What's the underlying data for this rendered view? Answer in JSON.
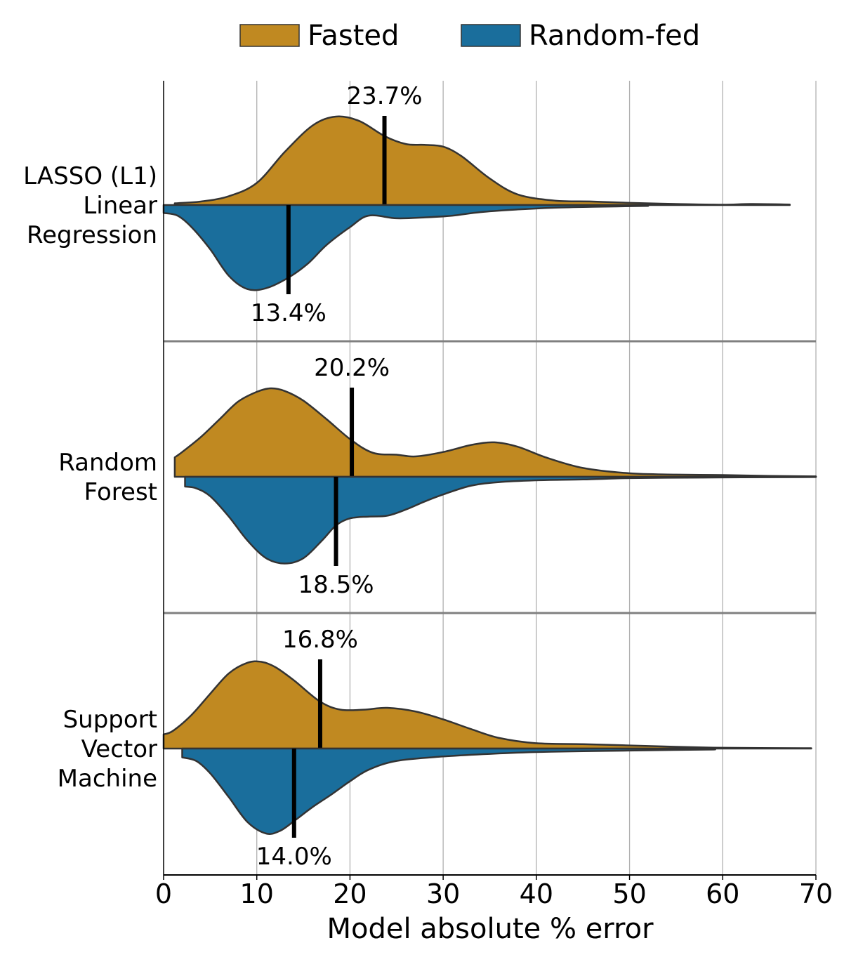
{
  "chart_data": {
    "type": "violin",
    "orientation": "horizontal",
    "split": true,
    "xlabel": "Model absolute % error",
    "xlim": [
      0,
      70
    ],
    "xticks": [
      0,
      10,
      20,
      30,
      40,
      50,
      60,
      70
    ],
    "grid": "vertical",
    "legend": {
      "position": "top-center",
      "items": [
        {
          "label": "Fasted",
          "color": "#c08921"
        },
        {
          "label": "Random-fed",
          "color": "#1a6e9c"
        }
      ]
    },
    "categories": [
      {
        "label_lines": [
          "LASSO (L1)",
          "Linear",
          "Regression"
        ],
        "fasted": {
          "median": 23.7,
          "median_label": "23.7%",
          "range": [
            1.2,
            67.2
          ],
          "density": [
            [
              1.2,
              0.02
            ],
            [
              4,
              0.04
            ],
            [
              7,
              0.1
            ],
            [
              10,
              0.25
            ],
            [
              13,
              0.6
            ],
            [
              16,
              0.9
            ],
            [
              18.5,
              1.0
            ],
            [
              21,
              0.95
            ],
            [
              23.7,
              0.78
            ],
            [
              26,
              0.69
            ],
            [
              28,
              0.68
            ],
            [
              30,
              0.66
            ],
            [
              32,
              0.55
            ],
            [
              35,
              0.3
            ],
            [
              38,
              0.12
            ],
            [
              42,
              0.05
            ],
            [
              46,
              0.04
            ],
            [
              50,
              0.025
            ],
            [
              55,
              0.012
            ],
            [
              60,
              0.004
            ],
            [
              63,
              0.012
            ],
            [
              67.2,
              0.006
            ]
          ]
        },
        "random_fed": {
          "median": 13.4,
          "median_label": "13.4%",
          "range": [
            0,
            52
          ],
          "density": [
            [
              0,
              0.09
            ],
            [
              1.5,
              0.12
            ],
            [
              3,
              0.25
            ],
            [
              5,
              0.5
            ],
            [
              7,
              0.8
            ],
            [
              9,
              0.95
            ],
            [
              11,
              0.94
            ],
            [
              13.4,
              0.82
            ],
            [
              15.5,
              0.66
            ],
            [
              17.5,
              0.45
            ],
            [
              20,
              0.25
            ],
            [
              22,
              0.12
            ],
            [
              25,
              0.15
            ],
            [
              28,
              0.14
            ],
            [
              31,
              0.12
            ],
            [
              34,
              0.08
            ],
            [
              38,
              0.05
            ],
            [
              42,
              0.03
            ],
            [
              46,
              0.02
            ],
            [
              52,
              0.01
            ]
          ]
        }
      },
      {
        "label_lines": [
          "Random",
          "Forest"
        ],
        "fasted": {
          "median": 20.2,
          "median_label": "20.2%",
          "range": [
            1.2,
            70
          ],
          "density": [
            [
              1.2,
              0.22
            ],
            [
              2,
              0.28
            ],
            [
              4,
              0.45
            ],
            [
              6,
              0.65
            ],
            [
              8,
              0.85
            ],
            [
              10,
              0.96
            ],
            [
              11.5,
              1.0
            ],
            [
              13,
              0.97
            ],
            [
              15,
              0.86
            ],
            [
              17.5,
              0.65
            ],
            [
              20.2,
              0.41
            ],
            [
              22.5,
              0.27
            ],
            [
              25,
              0.25
            ],
            [
              27,
              0.23
            ],
            [
              30,
              0.28
            ],
            [
              33,
              0.36
            ],
            [
              35.5,
              0.39
            ],
            [
              38,
              0.34
            ],
            [
              41,
              0.22
            ],
            [
              45,
              0.1
            ],
            [
              50,
              0.04
            ],
            [
              55,
              0.025
            ],
            [
              60,
              0.02
            ],
            [
              65,
              0.01
            ],
            [
              70,
              0.005
            ]
          ]
        },
        "random_fed": {
          "median": 18.5,
          "median_label": "18.5%",
          "range": [
            2.3,
            70
          ],
          "density": [
            [
              2.3,
              0.11
            ],
            [
              3.5,
              0.13
            ],
            [
              5,
              0.22
            ],
            [
              7,
              0.45
            ],
            [
              9,
              0.72
            ],
            [
              11,
              0.92
            ],
            [
              13,
              0.98
            ],
            [
              15,
              0.92
            ],
            [
              17,
              0.72
            ],
            [
              18.5,
              0.55
            ],
            [
              20,
              0.47
            ],
            [
              22,
              0.45
            ],
            [
              24,
              0.44
            ],
            [
              26,
              0.37
            ],
            [
              28,
              0.28
            ],
            [
              30,
              0.2
            ],
            [
              33,
              0.1
            ],
            [
              36,
              0.06
            ],
            [
              40,
              0.04
            ],
            [
              45,
              0.03
            ],
            [
              50,
              0.015
            ],
            [
              56,
              0.01
            ],
            [
              62,
              0.006
            ],
            [
              70,
              0.003
            ]
          ]
        }
      },
      {
        "label_lines": [
          "Support",
          "Vector",
          "Machine"
        ],
        "fasted": {
          "median": 16.8,
          "median_label": "16.8%",
          "range": [
            0,
            69.5
          ],
          "density": [
            [
              0,
              0.16
            ],
            [
              1,
              0.2
            ],
            [
              3,
              0.38
            ],
            [
              5,
              0.62
            ],
            [
              7,
              0.85
            ],
            [
              9,
              0.97
            ],
            [
              10.5,
              0.98
            ],
            [
              12,
              0.92
            ],
            [
              14,
              0.77
            ],
            [
              16.8,
              0.53
            ],
            [
              19,
              0.44
            ],
            [
              21.5,
              0.44
            ],
            [
              24,
              0.46
            ],
            [
              27,
              0.42
            ],
            [
              30,
              0.33
            ],
            [
              33,
              0.22
            ],
            [
              36,
              0.12
            ],
            [
              40,
              0.06
            ],
            [
              45,
              0.05
            ],
            [
              50,
              0.035
            ],
            [
              55,
              0.02
            ],
            [
              59,
              0.01
            ],
            [
              64,
              0.006
            ],
            [
              69.5,
              0.004
            ]
          ]
        },
        "random_fed": {
          "median": 14.0,
          "median_label": "14.0%",
          "range": [
            2,
            59.2
          ],
          "density": [
            [
              2,
              0.1
            ],
            [
              3.5,
              0.14
            ],
            [
              5,
              0.28
            ],
            [
              7,
              0.55
            ],
            [
              9,
              0.83
            ],
            [
              11,
              0.96
            ],
            [
              12.5,
              0.93
            ],
            [
              14,
              0.82
            ],
            [
              16,
              0.66
            ],
            [
              18,
              0.52
            ],
            [
              20,
              0.37
            ],
            [
              22,
              0.24
            ],
            [
              25,
              0.14
            ],
            [
              30,
              0.09
            ],
            [
              35,
              0.06
            ],
            [
              40,
              0.04
            ],
            [
              45,
              0.03
            ],
            [
              52,
              0.02
            ],
            [
              59.2,
              0.01
            ]
          ]
        }
      }
    ]
  }
}
